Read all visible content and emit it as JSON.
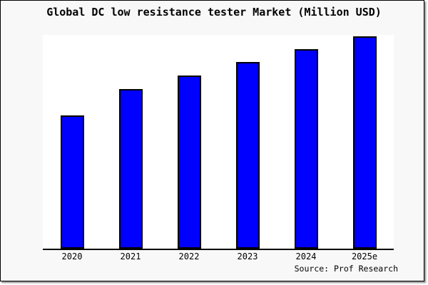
{
  "window": {
    "background_color": "#f8f8f8",
    "frame_border_color": "#000000",
    "plot_background_color": "#ffffff"
  },
  "chart_data": {
    "type": "bar",
    "title": "Global DC low resistance tester Market (Million USD)",
    "categories": [
      "2020",
      "2021",
      "2022",
      "2023",
      "2024",
      "2025e"
    ],
    "values": [
      187,
      224,
      243,
      262,
      280,
      298
    ],
    "unit": "relative bar height, px (no y-axis scale shown in chart)",
    "xlabel": "",
    "ylabel": "",
    "ylim": [
      0,
      300
    ],
    "grid": false,
    "y_axis_labels_visible": false,
    "legend": "none",
    "bar_color": "#0000ff",
    "bar_border_color": "#000000",
    "source_note": "Source: Prof Research"
  }
}
